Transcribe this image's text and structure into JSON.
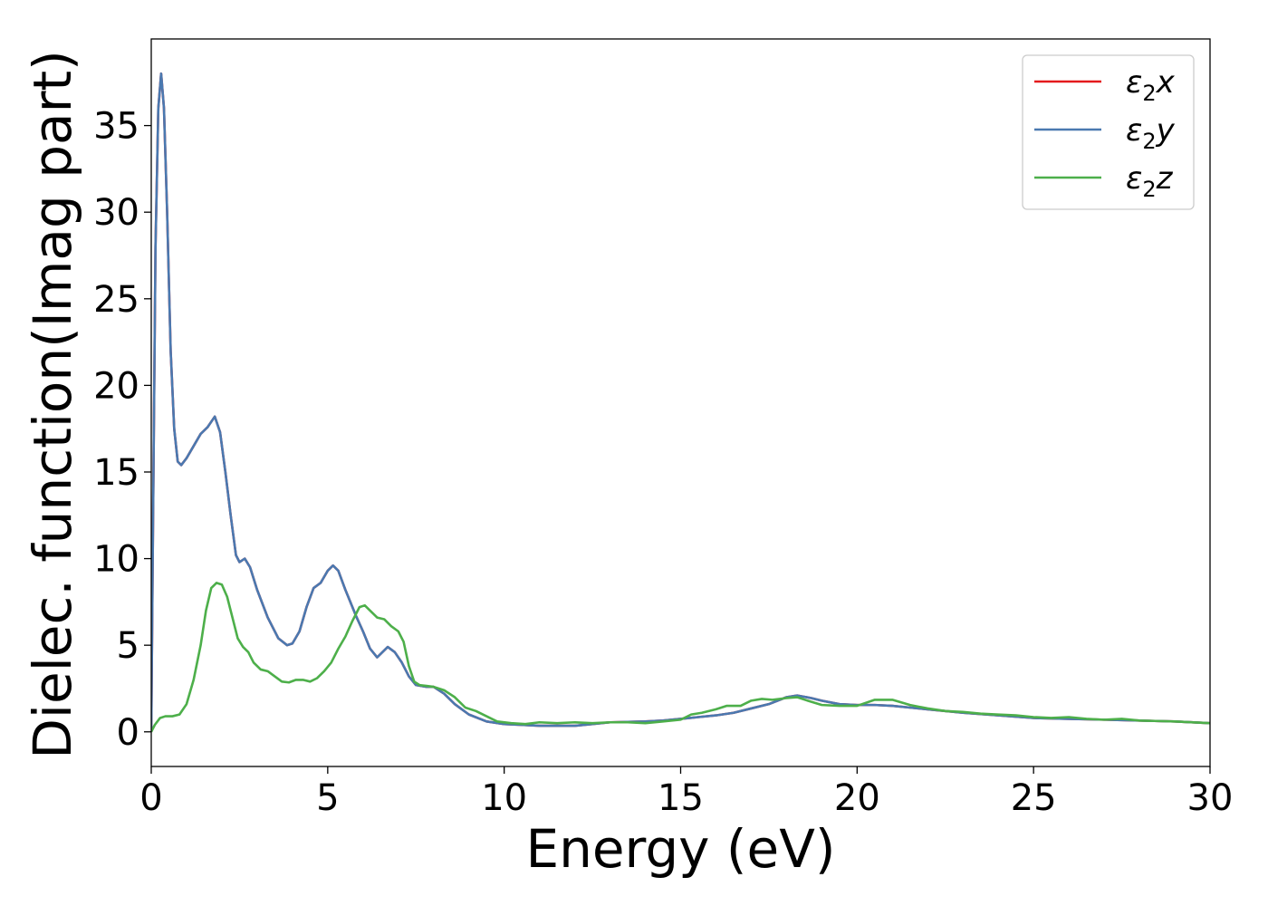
{
  "chart_data": {
    "type": "line",
    "title": "",
    "xlabel": "Energy (eV)",
    "ylabel": "Dielec. function(Imag part)",
    "xlim": [
      0,
      30
    ],
    "ylim": [
      -2,
      40
    ],
    "x_ticks": [
      0,
      5,
      10,
      15,
      20,
      25,
      30
    ],
    "y_ticks": [
      0,
      5,
      10,
      15,
      20,
      25,
      30,
      35
    ],
    "grid": false,
    "legend_position": "top-right",
    "series": [
      {
        "name": "ε₂x",
        "legend_base": "ε",
        "legend_sub": "2",
        "legend_var": "x",
        "color": "#e41a1c",
        "points": [
          [
            0,
            0
          ],
          [
            0.05,
            12
          ],
          [
            0.12,
            28
          ],
          [
            0.2,
            36
          ],
          [
            0.28,
            38
          ],
          [
            0.36,
            36
          ],
          [
            0.45,
            30
          ],
          [
            0.55,
            22
          ],
          [
            0.65,
            17.5
          ],
          [
            0.75,
            15.6
          ],
          [
            0.85,
            15.4
          ],
          [
            1.0,
            15.8
          ],
          [
            1.2,
            16.5
          ],
          [
            1.4,
            17.2
          ],
          [
            1.6,
            17.6
          ],
          [
            1.8,
            18.2
          ],
          [
            1.95,
            17.3
          ],
          [
            2.1,
            15
          ],
          [
            2.25,
            12.5
          ],
          [
            2.4,
            10.2
          ],
          [
            2.5,
            9.8
          ],
          [
            2.65,
            10
          ],
          [
            2.8,
            9.5
          ],
          [
            3.0,
            8.2
          ],
          [
            3.3,
            6.6
          ],
          [
            3.6,
            5.4
          ],
          [
            3.85,
            5.0
          ],
          [
            4.0,
            5.1
          ],
          [
            4.2,
            5.8
          ],
          [
            4.4,
            7.2
          ],
          [
            4.6,
            8.3
          ],
          [
            4.8,
            8.6
          ],
          [
            5.0,
            9.3
          ],
          [
            5.15,
            9.6
          ],
          [
            5.3,
            9.3
          ],
          [
            5.5,
            8.2
          ],
          [
            5.8,
            6.7
          ],
          [
            6.0,
            5.8
          ],
          [
            6.2,
            4.8
          ],
          [
            6.4,
            4.3
          ],
          [
            6.55,
            4.6
          ],
          [
            6.7,
            4.9
          ],
          [
            6.9,
            4.6
          ],
          [
            7.1,
            4.0
          ],
          [
            7.3,
            3.2
          ],
          [
            7.5,
            2.7
          ],
          [
            7.8,
            2.6
          ],
          [
            8.0,
            2.6
          ],
          [
            8.3,
            2.2
          ],
          [
            8.6,
            1.6
          ],
          [
            9.0,
            1.0
          ],
          [
            9.5,
            0.6
          ],
          [
            10.0,
            0.45
          ],
          [
            10.5,
            0.4
          ],
          [
            11.0,
            0.35
          ],
          [
            12.0,
            0.35
          ],
          [
            12.5,
            0.45
          ],
          [
            13.0,
            0.55
          ],
          [
            14.0,
            0.6
          ],
          [
            14.5,
            0.65
          ],
          [
            15.0,
            0.75
          ],
          [
            15.5,
            0.85
          ],
          [
            16.0,
            0.95
          ],
          [
            16.5,
            1.1
          ],
          [
            17.0,
            1.35
          ],
          [
            17.5,
            1.6
          ],
          [
            18.0,
            2.0
          ],
          [
            18.3,
            2.1
          ],
          [
            18.7,
            1.95
          ],
          [
            19.0,
            1.8
          ],
          [
            19.5,
            1.6
          ],
          [
            20.0,
            1.55
          ],
          [
            20.5,
            1.55
          ],
          [
            21.0,
            1.5
          ],
          [
            21.5,
            1.4
          ],
          [
            22.0,
            1.3
          ],
          [
            23.0,
            1.1
          ],
          [
            24.0,
            0.95
          ],
          [
            25.0,
            0.8
          ],
          [
            26.0,
            0.75
          ],
          [
            27.0,
            0.7
          ],
          [
            28.0,
            0.65
          ],
          [
            29.0,
            0.6
          ],
          [
            30.0,
            0.5
          ]
        ]
      },
      {
        "name": "ε₂y",
        "legend_base": "ε",
        "legend_sub": "2",
        "legend_var": "y",
        "color": "#4a79b0",
        "points": [
          [
            0,
            0
          ],
          [
            0.05,
            12
          ],
          [
            0.12,
            28
          ],
          [
            0.2,
            36
          ],
          [
            0.28,
            38
          ],
          [
            0.36,
            36
          ],
          [
            0.45,
            30
          ],
          [
            0.55,
            22
          ],
          [
            0.65,
            17.5
          ],
          [
            0.75,
            15.6
          ],
          [
            0.85,
            15.4
          ],
          [
            1.0,
            15.8
          ],
          [
            1.2,
            16.5
          ],
          [
            1.4,
            17.2
          ],
          [
            1.6,
            17.6
          ],
          [
            1.8,
            18.2
          ],
          [
            1.95,
            17.3
          ],
          [
            2.1,
            15
          ],
          [
            2.25,
            12.5
          ],
          [
            2.4,
            10.2
          ],
          [
            2.5,
            9.8
          ],
          [
            2.65,
            10
          ],
          [
            2.8,
            9.5
          ],
          [
            3.0,
            8.2
          ],
          [
            3.3,
            6.6
          ],
          [
            3.6,
            5.4
          ],
          [
            3.85,
            5.0
          ],
          [
            4.0,
            5.1
          ],
          [
            4.2,
            5.8
          ],
          [
            4.4,
            7.2
          ],
          [
            4.6,
            8.3
          ],
          [
            4.8,
            8.6
          ],
          [
            5.0,
            9.3
          ],
          [
            5.15,
            9.6
          ],
          [
            5.3,
            9.3
          ],
          [
            5.5,
            8.2
          ],
          [
            5.8,
            6.7
          ],
          [
            6.0,
            5.8
          ],
          [
            6.2,
            4.8
          ],
          [
            6.4,
            4.3
          ],
          [
            6.55,
            4.6
          ],
          [
            6.7,
            4.9
          ],
          [
            6.9,
            4.6
          ],
          [
            7.1,
            4.0
          ],
          [
            7.3,
            3.2
          ],
          [
            7.5,
            2.7
          ],
          [
            7.8,
            2.6
          ],
          [
            8.0,
            2.6
          ],
          [
            8.3,
            2.2
          ],
          [
            8.6,
            1.6
          ],
          [
            9.0,
            1.0
          ],
          [
            9.5,
            0.6
          ],
          [
            10.0,
            0.45
          ],
          [
            10.5,
            0.4
          ],
          [
            11.0,
            0.35
          ],
          [
            12.0,
            0.35
          ],
          [
            12.5,
            0.45
          ],
          [
            13.0,
            0.55
          ],
          [
            14.0,
            0.6
          ],
          [
            14.5,
            0.65
          ],
          [
            15.0,
            0.75
          ],
          [
            15.5,
            0.85
          ],
          [
            16.0,
            0.95
          ],
          [
            16.5,
            1.1
          ],
          [
            17.0,
            1.35
          ],
          [
            17.5,
            1.6
          ],
          [
            18.0,
            2.0
          ],
          [
            18.3,
            2.1
          ],
          [
            18.7,
            1.95
          ],
          [
            19.0,
            1.8
          ],
          [
            19.5,
            1.6
          ],
          [
            20.0,
            1.55
          ],
          [
            20.5,
            1.55
          ],
          [
            21.0,
            1.5
          ],
          [
            21.5,
            1.4
          ],
          [
            22.0,
            1.3
          ],
          [
            23.0,
            1.1
          ],
          [
            24.0,
            0.95
          ],
          [
            25.0,
            0.8
          ],
          [
            26.0,
            0.75
          ],
          [
            27.0,
            0.7
          ],
          [
            28.0,
            0.65
          ],
          [
            29.0,
            0.6
          ],
          [
            30.0,
            0.5
          ]
        ]
      },
      {
        "name": "ε₂z",
        "legend_base": "ε",
        "legend_sub": "2",
        "legend_var": "z",
        "color": "#4daf4a",
        "points": [
          [
            0,
            0
          ],
          [
            0.1,
            0.4
          ],
          [
            0.25,
            0.8
          ],
          [
            0.4,
            0.9
          ],
          [
            0.6,
            0.9
          ],
          [
            0.8,
            1.0
          ],
          [
            1.0,
            1.6
          ],
          [
            1.2,
            3.0
          ],
          [
            1.4,
            5.0
          ],
          [
            1.55,
            7.0
          ],
          [
            1.7,
            8.3
          ],
          [
            1.85,
            8.6
          ],
          [
            2.0,
            8.5
          ],
          [
            2.15,
            7.8
          ],
          [
            2.3,
            6.6
          ],
          [
            2.45,
            5.4
          ],
          [
            2.6,
            4.9
          ],
          [
            2.75,
            4.6
          ],
          [
            2.9,
            4.0
          ],
          [
            3.1,
            3.6
          ],
          [
            3.3,
            3.5
          ],
          [
            3.5,
            3.2
          ],
          [
            3.7,
            2.9
          ],
          [
            3.9,
            2.85
          ],
          [
            4.1,
            3.0
          ],
          [
            4.3,
            3.0
          ],
          [
            4.5,
            2.9
          ],
          [
            4.7,
            3.1
          ],
          [
            4.9,
            3.5
          ],
          [
            5.1,
            4.0
          ],
          [
            5.3,
            4.8
          ],
          [
            5.5,
            5.5
          ],
          [
            5.7,
            6.4
          ],
          [
            5.9,
            7.2
          ],
          [
            6.05,
            7.3
          ],
          [
            6.2,
            7.0
          ],
          [
            6.4,
            6.6
          ],
          [
            6.6,
            6.5
          ],
          [
            6.8,
            6.1
          ],
          [
            7.0,
            5.8
          ],
          [
            7.15,
            5.2
          ],
          [
            7.3,
            3.8
          ],
          [
            7.45,
            2.9
          ],
          [
            7.6,
            2.7
          ],
          [
            7.8,
            2.65
          ],
          [
            8.0,
            2.6
          ],
          [
            8.3,
            2.4
          ],
          [
            8.6,
            2.0
          ],
          [
            8.9,
            1.4
          ],
          [
            9.2,
            1.2
          ],
          [
            9.5,
            0.9
          ],
          [
            9.8,
            0.6
          ],
          [
            10.2,
            0.5
          ],
          [
            10.6,
            0.45
          ],
          [
            11.0,
            0.55
          ],
          [
            11.5,
            0.5
          ],
          [
            12.0,
            0.55
          ],
          [
            12.5,
            0.5
          ],
          [
            13.0,
            0.55
          ],
          [
            13.5,
            0.55
          ],
          [
            14.0,
            0.5
          ],
          [
            14.5,
            0.6
          ],
          [
            15.0,
            0.7
          ],
          [
            15.3,
            1.0
          ],
          [
            15.6,
            1.1
          ],
          [
            16.0,
            1.3
          ],
          [
            16.3,
            1.5
          ],
          [
            16.7,
            1.5
          ],
          [
            17.0,
            1.8
          ],
          [
            17.3,
            1.9
          ],
          [
            17.6,
            1.85
          ],
          [
            18.0,
            1.95
          ],
          [
            18.3,
            2.0
          ],
          [
            18.6,
            1.8
          ],
          [
            19.0,
            1.55
          ],
          [
            19.5,
            1.5
          ],
          [
            20.0,
            1.5
          ],
          [
            20.5,
            1.85
          ],
          [
            21.0,
            1.85
          ],
          [
            21.5,
            1.55
          ],
          [
            22.0,
            1.35
          ],
          [
            22.5,
            1.2
          ],
          [
            23.0,
            1.15
          ],
          [
            23.5,
            1.05
          ],
          [
            24.0,
            1.0
          ],
          [
            24.5,
            0.95
          ],
          [
            25.0,
            0.85
          ],
          [
            25.5,
            0.8
          ],
          [
            26.0,
            0.85
          ],
          [
            26.5,
            0.75
          ],
          [
            27.0,
            0.7
          ],
          [
            27.5,
            0.75
          ],
          [
            28.0,
            0.65
          ],
          [
            29.0,
            0.6
          ],
          [
            30.0,
            0.5
          ]
        ]
      }
    ]
  }
}
